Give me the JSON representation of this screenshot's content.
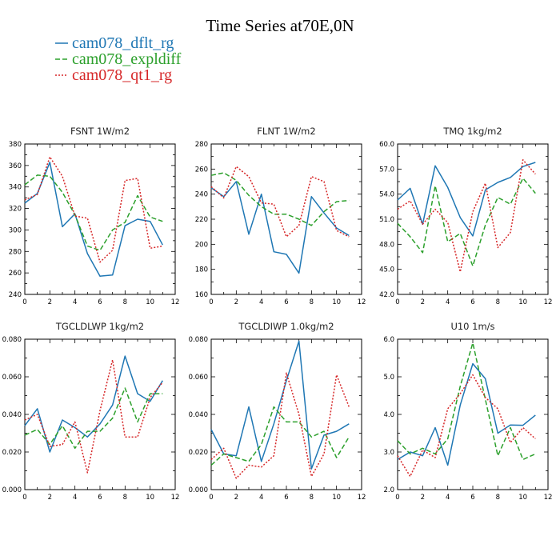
{
  "figure_title": "Time Series at70E,0N",
  "legend": [
    {
      "label": "cam078_dflt_rg",
      "color": "#1f77b4",
      "dash": "solid"
    },
    {
      "label": "cam078_expldiff",
      "color": "#2ca02c",
      "dash": "dash"
    },
    {
      "label": "cam078_qt1_rg",
      "color": "#d62728",
      "dash": "dot"
    }
  ],
  "chart_data": [
    {
      "type": "line",
      "title": "FSNT   1W/m2",
      "x": [
        0,
        1,
        2,
        3,
        4,
        5,
        6,
        7,
        8,
        9,
        10,
        11
      ],
      "xlim": [
        0,
        12
      ],
      "xticks": [
        "0",
        "2",
        "4",
        "6",
        "8",
        "10",
        "12"
      ],
      "ylim": [
        240,
        380
      ],
      "yticks": [
        "240",
        "260",
        "280",
        "300",
        "320",
        "340",
        "360",
        "380"
      ],
      "series": [
        {
          "name": "cam078_dflt_rg",
          "values": [
            325,
            334,
            363,
            303,
            315,
            278,
            257,
            258,
            304,
            310,
            308,
            286
          ]
        },
        {
          "name": "cam078_expldiff",
          "values": [
            342,
            351,
            350,
            335,
            314,
            285,
            281,
            300,
            307,
            332,
            312,
            308
          ]
        },
        {
          "name": "cam078_qt1_rg",
          "values": [
            328,
            333,
            368,
            350,
            313,
            311,
            270,
            281,
            346,
            348,
            283,
            285
          ]
        }
      ]
    },
    {
      "type": "line",
      "title": "FLNT   1W/m2",
      "x": [
        0,
        1,
        2,
        3,
        4,
        5,
        6,
        7,
        8,
        9,
        10,
        11
      ],
      "xlim": [
        0,
        12
      ],
      "xticks": [
        "0",
        "2",
        "4",
        "6",
        "8",
        "10",
        "12"
      ],
      "ylim": [
        160,
        280
      ],
      "yticks": [
        "160",
        "180",
        "200",
        "220",
        "240",
        "260",
        "280"
      ],
      "series": [
        {
          "name": "cam078_dflt_rg",
          "values": [
            245,
            238,
            250,
            208,
            240,
            194,
            192,
            177,
            238,
            225,
            213,
            207
          ]
        },
        {
          "name": "cam078_expldiff",
          "values": [
            255,
            257,
            251,
            239,
            230,
            224,
            224,
            220,
            215,
            226,
            234,
            235
          ]
        },
        {
          "name": "cam078_qt1_rg",
          "values": [
            246,
            237,
            262,
            254,
            233,
            232,
            206,
            215,
            254,
            250,
            211,
            206
          ]
        }
      ]
    },
    {
      "type": "line",
      "title": "TMQ   1kg/m2",
      "x": [
        0,
        1,
        2,
        3,
        4,
        5,
        6,
        7,
        8,
        9,
        10,
        11
      ],
      "xlim": [
        0,
        12
      ],
      "xticks": [
        "0",
        "2",
        "4",
        "6",
        "8",
        "10",
        "12"
      ],
      "ylim": [
        42.0,
        60.0
      ],
      "yticks": [
        "42.0",
        "45.0",
        "48.0",
        "51.0",
        "54.0",
        "57.0",
        "60.0"
      ],
      "series": [
        {
          "name": "cam078_dflt_rg",
          "values": [
            53.3,
            54.7,
            50.4,
            57.4,
            54.8,
            51.2,
            49.0,
            54.5,
            55.4,
            56.0,
            57.3,
            57.8
          ]
        },
        {
          "name": "cam078_expldiff",
          "values": [
            50.5,
            48.9,
            47.0,
            55.0,
            48.3,
            49.3,
            45.4,
            50.3,
            53.6,
            52.8,
            55.9,
            54.1
          ]
        },
        {
          "name": "cam078_qt1_rg",
          "values": [
            52.2,
            53.2,
            50.4,
            52.2,
            50.6,
            44.7,
            51.9,
            55.3,
            47.6,
            49.4,
            58.1,
            56.4
          ]
        }
      ]
    },
    {
      "type": "line",
      "title": "TGCLDLWP   1kg/m2",
      "x": [
        0,
        1,
        2,
        3,
        4,
        5,
        6,
        7,
        8,
        9,
        10,
        11
      ],
      "xlim": [
        0,
        12
      ],
      "xticks": [
        "0",
        "2",
        "4",
        "6",
        "8",
        "10",
        "12"
      ],
      "ylim": [
        0.0,
        0.08
      ],
      "yticks": [
        "0.000",
        "0.020",
        "0.040",
        "0.060",
        "0.080"
      ],
      "series": [
        {
          "name": "cam078_dflt_rg",
          "values": [
            0.034,
            0.043,
            0.02,
            0.037,
            0.033,
            0.028,
            0.035,
            0.045,
            0.071,
            0.051,
            0.047,
            0.058
          ]
        },
        {
          "name": "cam078_expldiff",
          "values": [
            0.029,
            0.032,
            0.024,
            0.034,
            0.022,
            0.031,
            0.031,
            0.038,
            0.054,
            0.036,
            0.051,
            0.051
          ]
        },
        {
          "name": "cam078_qt1_rg",
          "values": [
            0.037,
            0.04,
            0.023,
            0.024,
            0.036,
            0.009,
            0.042,
            0.069,
            0.028,
            0.028,
            0.049,
            0.057
          ]
        }
      ]
    },
    {
      "type": "line",
      "title": "TGCLDIWP   1.0kg/m2",
      "x": [
        0,
        1,
        2,
        3,
        4,
        5,
        6,
        7,
        8,
        9,
        10,
        11
      ],
      "xlim": [
        0,
        12
      ],
      "xticks": [
        "0",
        "2",
        "4",
        "6",
        "8",
        "10",
        "12"
      ],
      "ylim": [
        0.0,
        0.08
      ],
      "yticks": [
        "0.000",
        "0.020",
        "0.040",
        "0.060",
        "0.080"
      ],
      "series": [
        {
          "name": "cam078_dflt_rg",
          "values": [
            0.032,
            0.019,
            0.018,
            0.044,
            0.015,
            0.035,
            0.058,
            0.079,
            0.011,
            0.029,
            0.031,
            0.035
          ]
        },
        {
          "name": "cam078_expldiff",
          "values": [
            0.013,
            0.019,
            0.017,
            0.015,
            0.024,
            0.044,
            0.036,
            0.036,
            0.028,
            0.031,
            0.017,
            0.028
          ]
        },
        {
          "name": "cam078_qt1_rg",
          "values": [
            0.016,
            0.022,
            0.006,
            0.013,
            0.012,
            0.018,
            0.062,
            0.04,
            0.007,
            0.019,
            0.061,
            0.044
          ]
        }
      ]
    },
    {
      "type": "line",
      "title": "U10   1m/s",
      "x": [
        0,
        1,
        2,
        3,
        4,
        5,
        6,
        7,
        8,
        9,
        10,
        11
      ],
      "xlim": [
        0,
        12
      ],
      "xticks": [
        "0",
        "2",
        "4",
        "6",
        "8",
        "10",
        "12"
      ],
      "ylim": [
        2.0,
        6.0
      ],
      "yticks": [
        "2.0",
        "3.0",
        "4.0",
        "5.0",
        "6.0"
      ],
      "series": [
        {
          "name": "cam078_dflt_rg",
          "values": [
            2.8,
            3.0,
            2.9,
            3.65,
            2.65,
            4.25,
            5.35,
            4.95,
            3.5,
            3.72,
            3.71,
            3.98
          ]
        },
        {
          "name": "cam078_expldiff",
          "values": [
            3.3,
            2.95,
            3.1,
            2.95,
            3.35,
            4.75,
            5.9,
            4.4,
            2.9,
            3.65,
            2.8,
            2.95
          ]
        },
        {
          "name": "cam078_qt1_rg",
          "values": [
            2.9,
            2.35,
            3.05,
            2.85,
            4.15,
            4.55,
            5.05,
            4.45,
            4.15,
            3.25,
            3.65,
            3.35
          ]
        }
      ]
    }
  ]
}
